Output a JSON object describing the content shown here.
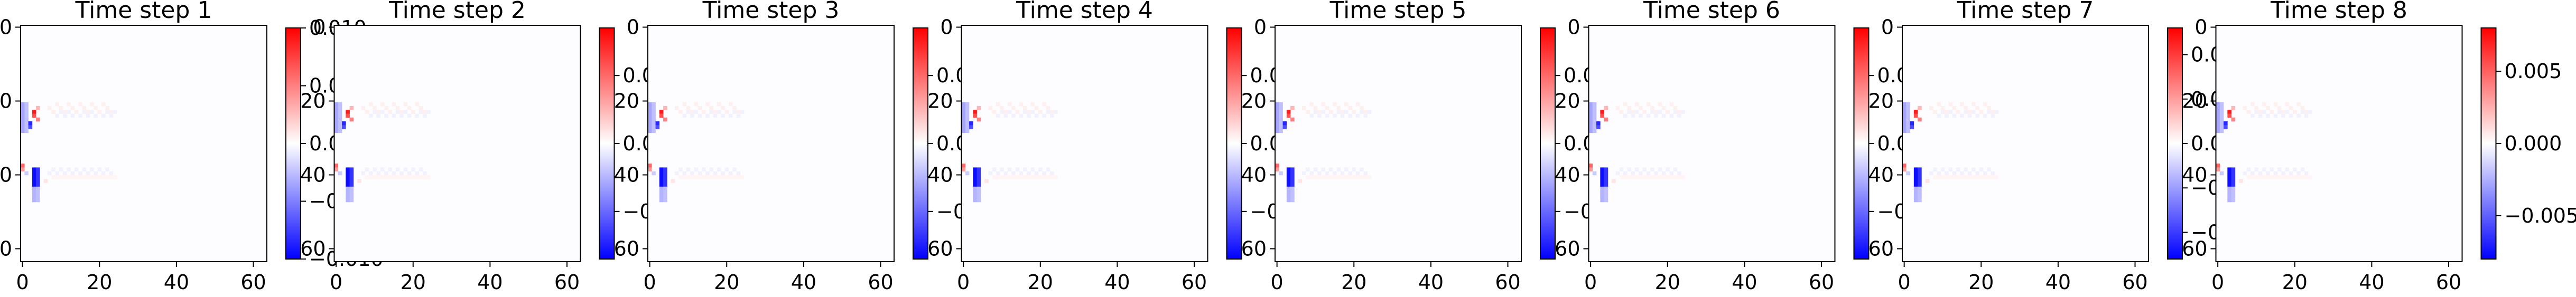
{
  "chart_data": {
    "type": "heatmap",
    "colormap": "bwr",
    "grid": false,
    "axis_ticks": [
      "0",
      "20",
      "40",
      "60"
    ],
    "axis_tick_values": [
      0,
      20,
      40,
      60
    ],
    "data_range": [
      0,
      63
    ],
    "panels": [
      {
        "title": "Time step 1",
        "vmin": -0.01,
        "vmax": 0.01,
        "colorbar_ticks": [
          "−0.010",
          "−0.005",
          "0.000",
          "0.005",
          "0.010"
        ],
        "colorbar_tick_values": [
          -0.01,
          -0.005,
          0.0,
          0.005,
          0.01
        ]
      },
      {
        "title": "Time step 2",
        "vmin": -0.0085,
        "vmax": 0.0085,
        "colorbar_ticks": [
          "−0.005",
          "0.000",
          "0.005"
        ],
        "colorbar_tick_values": [
          -0.005,
          0.0,
          0.005
        ]
      },
      {
        "title": "Time step 3",
        "vmin": -0.0085,
        "vmax": 0.0085,
        "colorbar_ticks": [
          "−0.005",
          "0.000",
          "0.005"
        ],
        "colorbar_tick_values": [
          -0.005,
          0.0,
          0.005
        ]
      },
      {
        "title": "Time step 4",
        "vmin": -0.0085,
        "vmax": 0.0085,
        "colorbar_ticks": [
          "−0.005",
          "0.000",
          "0.005"
        ],
        "colorbar_tick_values": [
          -0.005,
          0.0,
          0.005
        ]
      },
      {
        "title": "Time step 5",
        "vmin": -0.0085,
        "vmax": 0.0085,
        "colorbar_ticks": [
          "−0.005",
          "0.000",
          "0.005"
        ],
        "colorbar_tick_values": [
          -0.005,
          0.0,
          0.005
        ]
      },
      {
        "title": "Time step 6",
        "vmin": -0.0085,
        "vmax": 0.0085,
        "colorbar_ticks": [
          "−0.005",
          "0.000",
          "0.005"
        ],
        "colorbar_tick_values": [
          -0.005,
          0.0,
          0.005
        ]
      },
      {
        "title": "Time step 7",
        "vmin": -0.0065,
        "vmax": 0.0065,
        "colorbar_ticks": [
          "−0.0050",
          "−0.0025",
          "0.0000",
          "0.0025",
          "0.0050"
        ],
        "colorbar_tick_values": [
          -0.005,
          -0.0025,
          0.0,
          0.0025,
          0.005
        ]
      },
      {
        "title": "Time step 8",
        "vmin": -0.008,
        "vmax": 0.008,
        "colorbar_ticks": [
          "−0.005",
          "0.000",
          "0.005"
        ],
        "colorbar_tick_values": [
          -0.005,
          0.0,
          0.005
        ]
      }
    ]
  }
}
